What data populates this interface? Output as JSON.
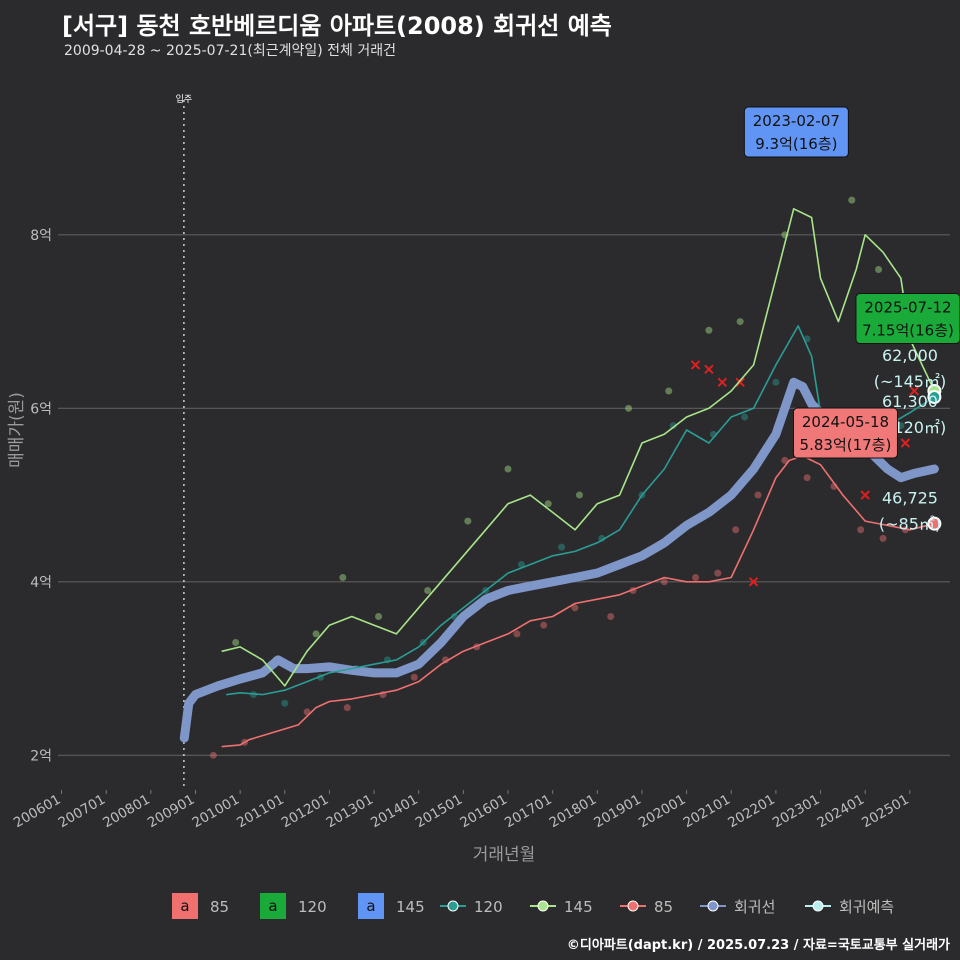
{
  "page": {
    "title": "[서구] 동천 호반베르디움 아파트(2008) 회귀선 예측",
    "subtitle": "2009-04-28 ~ 2025-07-21(최근계약일) 전체 거래건",
    "footer": "©디아파트(dapt.kr) / 2025.07.23 / 자료=국토교통부 실거래가"
  },
  "chart_data": {
    "type": "line",
    "title": "[서구] 동천 호반베르디움 아파트(2008) 회귀선 예측",
    "xlabel": "거래년월",
    "ylabel": "매매가(원)",
    "xlim": [
      2005.92,
      2025.9
    ],
    "ylim": [
      1.6,
      9.9
    ],
    "yunit": "억",
    "x_ticks": [
      {
        "x": 2006.0,
        "label": "200601"
      },
      {
        "x": 2007.0,
        "label": "200701"
      },
      {
        "x": 2008.0,
        "label": "200801"
      },
      {
        "x": 2009.0,
        "label": "200901"
      },
      {
        "x": 2010.0,
        "label": "201001"
      },
      {
        "x": 2011.0,
        "label": "201101"
      },
      {
        "x": 2012.0,
        "label": "201201"
      },
      {
        "x": 2013.0,
        "label": "201301"
      },
      {
        "x": 2014.0,
        "label": "201401"
      },
      {
        "x": 2015.0,
        "label": "201501"
      },
      {
        "x": 2016.0,
        "label": "201601"
      },
      {
        "x": 2017.0,
        "label": "201701"
      },
      {
        "x": 2018.0,
        "label": "201801"
      },
      {
        "x": 2019.0,
        "label": "201901"
      },
      {
        "x": 2020.0,
        "label": "202001"
      },
      {
        "x": 2021.0,
        "label": "202101"
      },
      {
        "x": 2022.0,
        "label": "202201"
      },
      {
        "x": 2023.0,
        "label": "202301"
      },
      {
        "x": 2024.0,
        "label": "202401"
      },
      {
        "x": 2025.0,
        "label": "202501"
      }
    ],
    "y_ticks": [
      {
        "y": 2,
        "label": "2억"
      },
      {
        "y": 4,
        "label": "4억"
      },
      {
        "y": 6,
        "label": "6억"
      },
      {
        "y": 8,
        "label": "8억"
      }
    ],
    "move_in": {
      "x": 2008.74,
      "label": "입주"
    },
    "series": [
      {
        "name": "85",
        "color": "#f07070",
        "x": [
          2009.6,
          2010.0,
          2010.2,
          2011.3,
          2011.7,
          2012.0,
          2012.5,
          2013.0,
          2013.5,
          2014.0,
          2014.5,
          2015.0,
          2015.5,
          2016.0,
          2016.5,
          2017.0,
          2017.5,
          2018.0,
          2018.5,
          2019.0,
          2019.5,
          2020.0,
          2020.5,
          2021.0,
          2021.5,
          2022.0,
          2022.3,
          2022.6,
          2023.0,
          2023.5,
          2024.0,
          2024.5,
          2025.0,
          2025.55
        ],
        "y": [
          2.1,
          2.12,
          2.18,
          2.35,
          2.55,
          2.62,
          2.65,
          2.7,
          2.75,
          2.85,
          3.05,
          3.2,
          3.3,
          3.4,
          3.55,
          3.6,
          3.75,
          3.8,
          3.85,
          3.95,
          4.05,
          4.0,
          4.0,
          4.05,
          4.6,
          5.2,
          5.4,
          5.45,
          5.35,
          5.0,
          4.7,
          4.65,
          4.6,
          4.67
        ]
      },
      {
        "name": "120",
        "color": "#2a9d95",
        "x": [
          2009.7,
          2010.0,
          2010.5,
          2011.0,
          2011.5,
          2012.0,
          2012.5,
          2013.0,
          2013.5,
          2014.0,
          2014.5,
          2015.0,
          2015.5,
          2016.0,
          2016.5,
          2017.0,
          2017.5,
          2018.0,
          2018.5,
          2019.0,
          2019.5,
          2020.0,
          2020.5,
          2021.0,
          2021.5,
          2022.0,
          2022.5,
          2022.8,
          2023.0,
          2023.5,
          2024.0,
          2024.5,
          2025.0,
          2025.55
        ],
        "y": [
          2.7,
          2.72,
          2.7,
          2.75,
          2.85,
          2.95,
          3.0,
          3.05,
          3.1,
          3.25,
          3.5,
          3.7,
          3.9,
          4.1,
          4.2,
          4.3,
          4.35,
          4.45,
          4.6,
          5.0,
          5.3,
          5.75,
          5.6,
          5.9,
          6.0,
          6.5,
          6.95,
          6.6,
          5.95,
          5.6,
          5.7,
          5.8,
          5.95,
          6.13
        ]
      },
      {
        "name": "145",
        "color": "#a8e58a",
        "x": [
          2009.6,
          2010.0,
          2010.5,
          2011.0,
          2011.5,
          2012.0,
          2012.5,
          2013.0,
          2013.5,
          2014.0,
          2014.5,
          2015.0,
          2015.5,
          2016.0,
          2016.5,
          2017.0,
          2017.5,
          2018.0,
          2018.5,
          2019.0,
          2019.5,
          2020.0,
          2020.5,
          2021.0,
          2021.5,
          2022.0,
          2022.4,
          2022.8,
          2023.0,
          2023.4,
          2023.8,
          2024.0,
          2024.4,
          2024.8,
          2025.0,
          2025.55
        ],
        "y": [
          3.2,
          3.25,
          3.1,
          2.8,
          3.2,
          3.5,
          3.6,
          3.5,
          3.4,
          3.7,
          4.0,
          4.3,
          4.6,
          4.9,
          5.0,
          4.8,
          4.6,
          4.9,
          5.0,
          5.6,
          5.7,
          5.9,
          6.0,
          6.2,
          6.5,
          7.5,
          8.3,
          8.2,
          7.5,
          7.0,
          7.6,
          8.0,
          7.8,
          7.5,
          6.8,
          6.2
        ]
      },
      {
        "name": "회귀선",
        "color": "#7f96c8",
        "x": [
          2008.75,
          2008.85,
          2009.0,
          2009.5,
          2010.0,
          2010.5,
          2010.85,
          2011.2,
          2011.5,
          2012.0,
          2012.5,
          2013.0,
          2013.5,
          2014.0,
          2014.5,
          2015.0,
          2015.5,
          2016.0,
          2016.5,
          2017.0,
          2017.5,
          2018.0,
          2018.5,
          2019.0,
          2019.5,
          2020.0,
          2020.5,
          2021.0,
          2021.5,
          2022.0,
          2022.4,
          2022.6,
          2022.8,
          2023.0,
          2023.5,
          2024.0,
          2024.5,
          2024.8,
          2025.1,
          2025.55
        ],
        "y": [
          2.2,
          2.6,
          2.7,
          2.8,
          2.88,
          2.95,
          3.1,
          3.0,
          3.0,
          3.02,
          2.98,
          2.95,
          2.95,
          3.05,
          3.3,
          3.6,
          3.8,
          3.9,
          3.95,
          4.0,
          4.05,
          4.1,
          4.2,
          4.3,
          4.45,
          4.65,
          4.8,
          5.0,
          5.3,
          5.7,
          6.3,
          6.25,
          6.05,
          5.95,
          5.8,
          5.55,
          5.3,
          5.2,
          5.25,
          5.3
        ]
      },
      {
        "name": "회귀예측",
        "color": "#b8f0ee",
        "x": [],
        "y": []
      }
    ],
    "trade_points": {
      "85": [
        [
          2009.4,
          2.0
        ],
        [
          2010.1,
          2.15
        ],
        [
          2011.5,
          2.5
        ],
        [
          2012.4,
          2.55
        ],
        [
          2013.2,
          2.7
        ],
        [
          2013.9,
          2.9
        ],
        [
          2014.6,
          3.1
        ],
        [
          2015.3,
          3.25
        ],
        [
          2016.2,
          3.4
        ],
        [
          2016.8,
          3.5
        ],
        [
          2017.5,
          3.7
        ],
        [
          2018.3,
          3.6
        ],
        [
          2018.8,
          3.9
        ],
        [
          2019.5,
          4.0
        ],
        [
          2020.2,
          4.05
        ],
        [
          2020.7,
          4.1
        ],
        [
          2021.1,
          4.6
        ],
        [
          2021.6,
          5.0
        ],
        [
          2022.2,
          5.4
        ],
        [
          2022.7,
          5.2
        ],
        [
          2023.3,
          5.1
        ],
        [
          2023.9,
          4.6
        ],
        [
          2024.4,
          4.5
        ],
        [
          2024.9,
          4.6
        ]
      ],
      "120": [
        [
          2010.3,
          2.7
        ],
        [
          2011.0,
          2.6
        ],
        [
          2011.8,
          2.9
        ],
        [
          2012.6,
          3.0
        ],
        [
          2013.3,
          3.1
        ],
        [
          2014.1,
          3.3
        ],
        [
          2014.8,
          3.6
        ],
        [
          2015.5,
          3.9
        ],
        [
          2016.3,
          4.2
        ],
        [
          2017.2,
          4.4
        ],
        [
          2018.1,
          4.5
        ],
        [
          2019.0,
          5.0
        ],
        [
          2019.7,
          5.8
        ],
        [
          2020.6,
          5.7
        ],
        [
          2021.3,
          5.9
        ],
        [
          2022.0,
          6.3
        ],
        [
          2022.7,
          6.8
        ],
        [
          2023.4,
          5.8
        ],
        [
          2024.2,
          5.9
        ],
        [
          2024.8,
          5.8
        ]
      ],
      "145": [
        [
          2009.9,
          3.3
        ],
        [
          2010.8,
          3.1
        ],
        [
          2011.7,
          3.4
        ],
        [
          2012.3,
          4.05
        ],
        [
          2013.1,
          3.6
        ],
        [
          2014.2,
          3.9
        ],
        [
          2015.1,
          4.7
        ],
        [
          2016.0,
          5.3
        ],
        [
          2016.9,
          4.9
        ],
        [
          2017.6,
          5.0
        ],
        [
          2018.7,
          6.0
        ],
        [
          2019.6,
          6.2
        ],
        [
          2020.5,
          6.9
        ],
        [
          2021.2,
          7.0
        ],
        [
          2022.2,
          8.0
        ],
        [
          2022.9,
          9.3
        ],
        [
          2023.7,
          8.4
        ],
        [
          2024.3,
          7.6
        ],
        [
          2024.7,
          6.8
        ],
        [
          2025.2,
          7.15
        ]
      ]
    },
    "cancelled_points": [
      [
        2020.2,
        6.5
      ],
      [
        2020.5,
        6.45
      ],
      [
        2020.8,
        6.3
      ],
      [
        2021.2,
        6.3
      ],
      [
        2021.5,
        4.0
      ],
      [
        2024.0,
        5.0
      ],
      [
        2024.9,
        5.6
      ],
      [
        2025.1,
        6.2
      ]
    ],
    "annotations": [
      {
        "x": 2022.1,
        "y": 9.3,
        "series": "145",
        "date": "2023-02-07",
        "price": "9.3억(16층)"
      },
      {
        "x": 2024.6,
        "y": 7.15,
        "series": "120",
        "date": "2025-07-12",
        "price": "7.15억(16층)"
      },
      {
        "x": 2023.2,
        "y": 5.83,
        "series": "85",
        "date": "2024-05-18",
        "price": "5.83억(17층)"
      }
    ],
    "predictions": [
      {
        "series": "145",
        "x": 2025.55,
        "y": 6.2,
        "value": "62,000",
        "area": "(~145㎡)"
      },
      {
        "series": "120",
        "x": 2025.55,
        "y": 6.13,
        "value": "61,300",
        "area": "(~120㎡)"
      },
      {
        "series": "85",
        "x": 2025.55,
        "y": 4.67,
        "value": "46,725",
        "area": "(~85㎡)"
      }
    ],
    "legend": {
      "box_items": [
        {
          "key": "a",
          "label": "85",
          "color": "#f07070"
        },
        {
          "key": "a",
          "label": "120",
          "color": "#1aaa3a"
        },
        {
          "key": "a",
          "label": "145",
          "color": "#6095f5"
        }
      ],
      "line_items": [
        {
          "label": "120",
          "color": "#2a9d95"
        },
        {
          "label": "145",
          "color": "#a8e58a"
        },
        {
          "label": "85",
          "color": "#f07070"
        },
        {
          "label": "회귀선",
          "color": "#7f96c8"
        },
        {
          "label": "회귀예측",
          "color": "#b8f0ee"
        }
      ]
    }
  }
}
